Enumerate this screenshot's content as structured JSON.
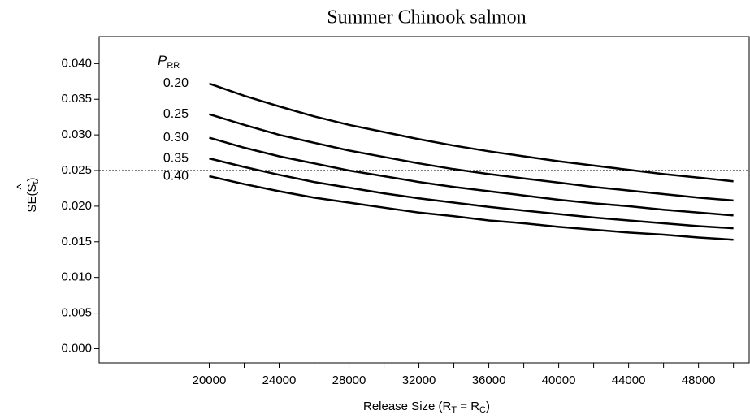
{
  "chart_data": {
    "type": "line",
    "title": "Summer Chinook salmon",
    "xlabel": {
      "main": "Release Size (R",
      "sub1": "T",
      "mid": " = R",
      "sub2": "C",
      "close": ")"
    },
    "ylabel": {
      "main": "SE(S",
      "hat": "^",
      "sub": "t",
      "close": ")"
    },
    "legend_title": {
      "main": "P",
      "sub": "RR"
    },
    "x": [
      20000,
      22000,
      24000,
      26000,
      28000,
      30000,
      32000,
      34000,
      36000,
      38000,
      40000,
      42000,
      44000,
      46000,
      48000,
      50000
    ],
    "series": [
      {
        "name": "0.20",
        "color": "#000000",
        "values": [
          0.0372,
          0.0355,
          0.034,
          0.0326,
          0.0314,
          0.0304,
          0.0294,
          0.0285,
          0.0277,
          0.027,
          0.0263,
          0.0257,
          0.0251,
          0.0245,
          0.024,
          0.0235
        ]
      },
      {
        "name": "0.25",
        "color": "#000000",
        "values": [
          0.0329,
          0.0314,
          0.03,
          0.0289,
          0.0278,
          0.0269,
          0.026,
          0.0252,
          0.0245,
          0.0239,
          0.0233,
          0.0227,
          0.0222,
          0.0217,
          0.0212,
          0.0208
        ]
      },
      {
        "name": "0.30",
        "color": "#000000",
        "values": [
          0.0296,
          0.0282,
          0.027,
          0.026,
          0.025,
          0.0242,
          0.0234,
          0.0227,
          0.0221,
          0.0215,
          0.0209,
          0.0204,
          0.02,
          0.0195,
          0.0191,
          0.0187
        ]
      },
      {
        "name": "0.35",
        "color": "#000000",
        "values": [
          0.0267,
          0.0255,
          0.0244,
          0.0234,
          0.0226,
          0.0218,
          0.0211,
          0.0205,
          0.0199,
          0.0194,
          0.0189,
          0.0184,
          0.018,
          0.0176,
          0.0172,
          0.0169
        ]
      },
      {
        "name": "0.40",
        "color": "#000000",
        "values": [
          0.0242,
          0.0231,
          0.0221,
          0.0212,
          0.0205,
          0.0198,
          0.0191,
          0.0186,
          0.018,
          0.0176,
          0.0171,
          0.0167,
          0.0163,
          0.016,
          0.0156,
          0.0153
        ]
      }
    ],
    "reference_line": 0.025,
    "xlim": [
      13700,
      50900
    ],
    "ylim": [
      -0.002,
      0.0438
    ],
    "xticks": [
      20000,
      24000,
      28000,
      32000,
      36000,
      40000,
      44000,
      48000
    ],
    "xminorticks": [
      22000,
      26000,
      30000,
      34000,
      38000,
      42000,
      46000,
      50000
    ],
    "yticks": [
      {
        "value": 0,
        "label": "0.000"
      },
      {
        "value": 0.005,
        "label": "0.005"
      },
      {
        "value": 0.01,
        "label": "0.010"
      },
      {
        "value": 0.015,
        "label": "0.015"
      },
      {
        "value": 0.02,
        "label": "0.020"
      },
      {
        "value": 0.025,
        "label": "0.025"
      },
      {
        "value": 0.03,
        "label": "0.030"
      },
      {
        "value": 0.035,
        "label": "0.035"
      },
      {
        "value": 0.04,
        "label": "0.040"
      }
    ],
    "grid": false
  }
}
